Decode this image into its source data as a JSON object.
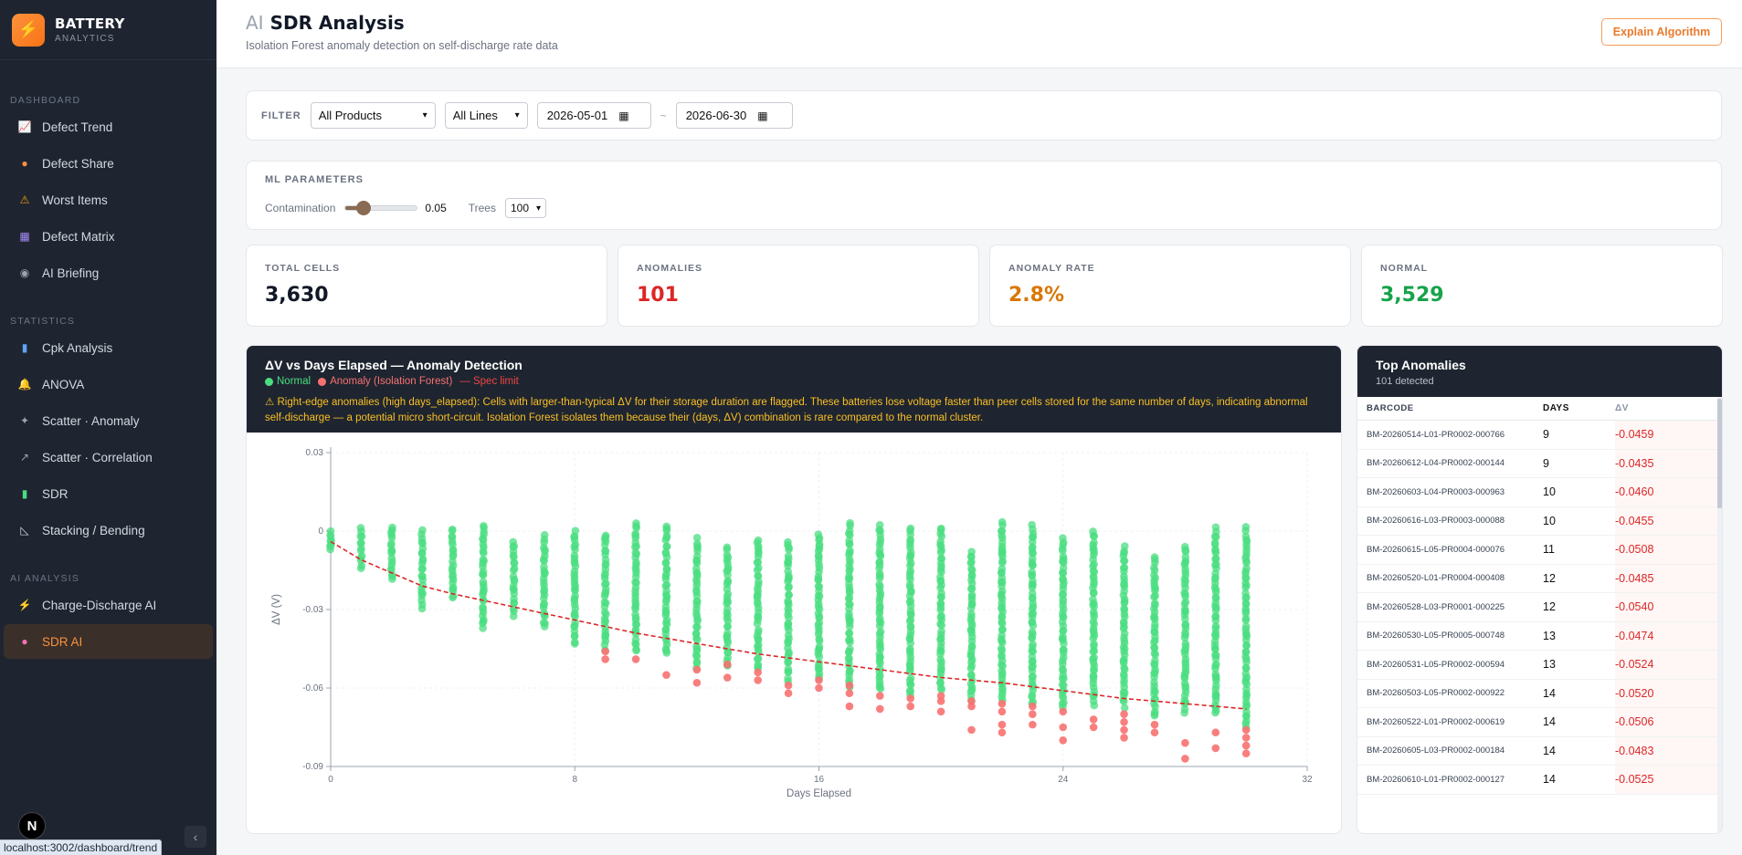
{
  "brand": {
    "title": "BATTERY",
    "sub": "ANALYTICS"
  },
  "sidebar": {
    "sections": [
      {
        "label": "DASHBOARD",
        "items": [
          {
            "label": "Defect Trend",
            "icon": "chart-up-icon"
          },
          {
            "label": "Defect Share",
            "icon": "pie-icon"
          },
          {
            "label": "Worst Items",
            "icon": "warning-icon"
          },
          {
            "label": "Defect Matrix",
            "icon": "matrix-icon"
          },
          {
            "label": "AI Briefing",
            "icon": "robot-icon"
          }
        ]
      },
      {
        "label": "STATISTICS",
        "items": [
          {
            "label": "Cpk Analysis",
            "icon": "bar-chart-icon"
          },
          {
            "label": "ANOVA",
            "icon": "bell-icon"
          },
          {
            "label": "Scatter · Anomaly",
            "icon": "sparkle-icon"
          },
          {
            "label": "Scatter · Correlation",
            "icon": "trend-icon"
          },
          {
            "label": "SDR",
            "icon": "battery-icon"
          },
          {
            "label": "Stacking / Bending",
            "icon": "ruler-icon"
          }
        ]
      },
      {
        "label": "AI ANALYSIS",
        "items": [
          {
            "label": "Charge-Discharge AI",
            "icon": "bolt-icon"
          },
          {
            "label": "SDR AI",
            "icon": "brain-icon",
            "active": true
          }
        ]
      }
    ],
    "next_badge": "N",
    "status_url": "localhost:3002/dashboard/trend"
  },
  "header": {
    "title_prefix": "AI",
    "title": "SDR Analysis",
    "subtitle": "Isolation Forest anomaly detection on self-discharge rate data",
    "explain_button": "Explain Algorithm"
  },
  "filter": {
    "label": "FILTER",
    "product": "All Products",
    "line": "All Lines",
    "date_from": "2026-05-01",
    "date_sep": "~",
    "date_to": "2026-06-30"
  },
  "ml": {
    "title": "ML PARAMETERS",
    "contamination_label": "Contamination",
    "contamination": 0.05,
    "contamination_text": "0.05",
    "trees_label": "Trees",
    "trees": "100"
  },
  "stats": [
    {
      "label": "TOTAL CELLS",
      "value": "3,630",
      "color": "#111827"
    },
    {
      "label": "ANOMALIES",
      "value": "101",
      "color": "#dc2626"
    },
    {
      "label": "ANOMALY RATE",
      "value": "2.8%",
      "color": "#d97706"
    },
    {
      "label": "NORMAL",
      "value": "3,529",
      "color": "#16a34a"
    }
  ],
  "chart": {
    "title": "ΔV vs Days Elapsed — Anomaly Detection",
    "legend_normal": "Normal",
    "legend_anomaly": "Anomaly (Isolation Forest)",
    "legend_spec": "— Spec limit",
    "note": "⚠ Right-edge anomalies (high days_elapsed): Cells with larger-than-typical ΔV for their storage duration are flagged. These batteries lose voltage faster than peer cells stored for the same number of days, indicating abnormal self-discharge — a potential micro short-circuit. Isolation Forest isolates them because their (days, ΔV) combination is rare compared to the normal cluster."
  },
  "chart_data": {
    "type": "scatter",
    "xlabel": "Days Elapsed",
    "ylabel": "ΔV (V)",
    "xlim": [
      0,
      32
    ],
    "ylim": [
      -0.09,
      0.03
    ],
    "x_ticks": [
      0,
      8,
      16,
      24,
      32
    ],
    "y_ticks": [
      0.03,
      0,
      -0.03,
      -0.06,
      -0.09
    ],
    "colors": {
      "normal": "#4ade80",
      "anomaly": "#f87171",
      "spec": "#dc2626"
    },
    "normal_columns": [
      {
        "x": 0,
        "top": 0.0,
        "bottom": -0.007
      },
      {
        "x": 1,
        "top": 0.001,
        "bottom": -0.014
      },
      {
        "x": 2,
        "top": 0.002,
        "bottom": -0.019
      },
      {
        "x": 3,
        "top": 0.0,
        "bottom": -0.029
      },
      {
        "x": 4,
        "top": 0.001,
        "bottom": -0.026
      },
      {
        "x": 5,
        "top": 0.002,
        "bottom": -0.037
      },
      {
        "x": 6,
        "top": -0.004,
        "bottom": -0.032
      },
      {
        "x": 7,
        "top": -0.002,
        "bottom": -0.037
      },
      {
        "x": 8,
        "top": 0.0,
        "bottom": -0.043
      },
      {
        "x": 9,
        "top": -0.001,
        "bottom": -0.045
      },
      {
        "x": 10,
        "top": 0.003,
        "bottom": -0.046
      },
      {
        "x": 11,
        "top": 0.002,
        "bottom": -0.047
      },
      {
        "x": 12,
        "top": -0.003,
        "bottom": -0.052
      },
      {
        "x": 13,
        "top": -0.006,
        "bottom": -0.052
      },
      {
        "x": 14,
        "top": -0.003,
        "bottom": -0.053
      },
      {
        "x": 15,
        "top": -0.004,
        "bottom": -0.057
      },
      {
        "x": 16,
        "top": -0.001,
        "bottom": -0.057
      },
      {
        "x": 17,
        "top": 0.003,
        "bottom": -0.059
      },
      {
        "x": 18,
        "top": 0.002,
        "bottom": -0.061
      },
      {
        "x": 19,
        "top": 0.001,
        "bottom": -0.063
      },
      {
        "x": 20,
        "top": 0.001,
        "bottom": -0.061
      },
      {
        "x": 21,
        "top": -0.008,
        "bottom": -0.064
      },
      {
        "x": 22,
        "top": 0.003,
        "bottom": -0.065
      },
      {
        "x": 23,
        "top": 0.002,
        "bottom": -0.066
      },
      {
        "x": 24,
        "top": -0.003,
        "bottom": -0.068
      },
      {
        "x": 25,
        "top": 0.0,
        "bottom": -0.066
      },
      {
        "x": 26,
        "top": -0.006,
        "bottom": -0.067
      },
      {
        "x": 27,
        "top": -0.01,
        "bottom": -0.071
      },
      {
        "x": 28,
        "top": -0.006,
        "bottom": -0.069
      },
      {
        "x": 29,
        "top": 0.001,
        "bottom": -0.07
      },
      {
        "x": 30,
        "top": 0.001,
        "bottom": -0.075
      }
    ],
    "anomalies": [
      [
        9,
        -0.046
      ],
      [
        9,
        -0.049
      ],
      [
        10,
        -0.049
      ],
      [
        11,
        -0.055
      ],
      [
        12,
        -0.053
      ],
      [
        12,
        -0.058
      ],
      [
        13,
        -0.051
      ],
      [
        13,
        -0.056
      ],
      [
        14,
        -0.054
      ],
      [
        14,
        -0.057
      ],
      [
        15,
        -0.059
      ],
      [
        15,
        -0.062
      ],
      [
        16,
        -0.057
      ],
      [
        16,
        -0.06
      ],
      [
        17,
        -0.059
      ],
      [
        17,
        -0.062
      ],
      [
        17,
        -0.067
      ],
      [
        18,
        -0.063
      ],
      [
        18,
        -0.068
      ],
      [
        19,
        -0.064
      ],
      [
        19,
        -0.067
      ],
      [
        20,
        -0.063
      ],
      [
        20,
        -0.065
      ],
      [
        20,
        -0.069
      ],
      [
        21,
        -0.065
      ],
      [
        21,
        -0.067
      ],
      [
        21,
        -0.076
      ],
      [
        22,
        -0.066
      ],
      [
        22,
        -0.069
      ],
      [
        22,
        -0.074
      ],
      [
        22,
        -0.077
      ],
      [
        23,
        -0.067
      ],
      [
        23,
        -0.07
      ],
      [
        23,
        -0.074
      ],
      [
        24,
        -0.069
      ],
      [
        24,
        -0.075
      ],
      [
        24,
        -0.08
      ],
      [
        25,
        -0.072
      ],
      [
        25,
        -0.075
      ],
      [
        26,
        -0.07
      ],
      [
        26,
        -0.073
      ],
      [
        26,
        -0.076
      ],
      [
        26,
        -0.079
      ],
      [
        27,
        -0.074
      ],
      [
        27,
        -0.077
      ],
      [
        28,
        -0.081
      ],
      [
        28,
        -0.087
      ],
      [
        29,
        -0.077
      ],
      [
        29,
        -0.083
      ],
      [
        30,
        -0.076
      ],
      [
        30,
        -0.079
      ],
      [
        30,
        -0.082
      ],
      [
        30,
        -0.085
      ]
    ],
    "spec_limit": [
      [
        0,
        -0.004
      ],
      [
        1,
        -0.011
      ],
      [
        2,
        -0.016
      ],
      [
        3,
        -0.021
      ],
      [
        4,
        -0.024
      ],
      [
        6,
        -0.029
      ],
      [
        8,
        -0.034
      ],
      [
        10,
        -0.039
      ],
      [
        12,
        -0.043
      ],
      [
        14,
        -0.047
      ],
      [
        16,
        -0.05
      ],
      [
        18,
        -0.053
      ],
      [
        20,
        -0.056
      ],
      [
        22,
        -0.058
      ],
      [
        24,
        -0.061
      ],
      [
        26,
        -0.064
      ],
      [
        28,
        -0.066
      ],
      [
        30,
        -0.068
      ]
    ]
  },
  "anomaly_table": {
    "title": "Top Anomalies",
    "subtitle": "101 detected",
    "headers": [
      "BARCODE",
      "DAYS",
      "ΔV"
    ],
    "rows": [
      [
        "BM-20260514-L01-PR0002-000766",
        "9",
        "-0.0459"
      ],
      [
        "BM-20260612-L04-PR0002-000144",
        "9",
        "-0.0435"
      ],
      [
        "BM-20260603-L04-PR0003-000963",
        "10",
        "-0.0460"
      ],
      [
        "BM-20260616-L03-PR0003-000088",
        "10",
        "-0.0455"
      ],
      [
        "BM-20260615-L05-PR0004-000076",
        "11",
        "-0.0508"
      ],
      [
        "BM-20260520-L01-PR0004-000408",
        "12",
        "-0.0485"
      ],
      [
        "BM-20260528-L03-PR0001-000225",
        "12",
        "-0.0540"
      ],
      [
        "BM-20260530-L05-PR0005-000748",
        "13",
        "-0.0474"
      ],
      [
        "BM-20260531-L05-PR0002-000594",
        "13",
        "-0.0524"
      ],
      [
        "BM-20260503-L05-PR0002-000922",
        "14",
        "-0.0520"
      ],
      [
        "BM-20260522-L01-PR0002-000619",
        "14",
        "-0.0506"
      ],
      [
        "BM-20260605-L03-PR0002-000184",
        "14",
        "-0.0483"
      ],
      [
        "BM-20260610-L01-PR0002-000127",
        "14",
        "-0.0525"
      ]
    ]
  }
}
